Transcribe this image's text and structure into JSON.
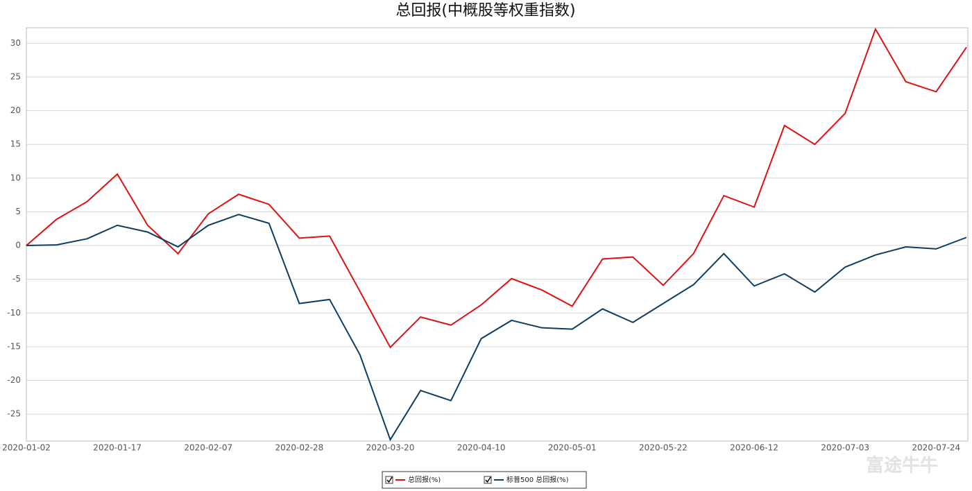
{
  "chart_data": {
    "type": "line",
    "title": "总回报(中概股等权重指数)",
    "categories": [
      "2020-01-02",
      null,
      null,
      "2020-01-17",
      null,
      null,
      "2020-02-07",
      null,
      null,
      "2020-02-28",
      null,
      null,
      "2020-03-20",
      null,
      null,
      "2020-04-10",
      null,
      null,
      "2020-05-01",
      null,
      null,
      "2020-05-22",
      null,
      null,
      "2020-06-12",
      null,
      null,
      "2020-07-03",
      null,
      null,
      "2020-07-24",
      null
    ],
    "series": [
      {
        "name": "总回报(%)",
        "color": "#e01010",
        "values": [
          0,
          3.9,
          6.5,
          10.6,
          3.0,
          -1.2,
          4.7,
          7.6,
          6.1,
          1.1,
          1.4,
          -6.8,
          -15.1,
          -10.6,
          -11.8,
          -8.8,
          -4.9,
          -6.6,
          -9.0,
          -2.0,
          -1.7,
          -5.9,
          -1.2,
          7.4,
          5.7,
          17.8,
          15.0,
          19.6,
          32.1,
          24.3,
          22.8,
          29.4
        ]
      },
      {
        "name": "标普500 总回报(%)",
        "color": "#0c3c60",
        "values": [
          0,
          0.1,
          1.0,
          3.0,
          2.0,
          -0.2,
          3.0,
          4.6,
          3.3,
          -8.6,
          -8.0,
          -16.2,
          -28.8,
          -21.5,
          -23.0,
          -13.8,
          -11.1,
          -12.2,
          -12.4,
          -9.4,
          -11.4,
          -8.6,
          -5.8,
          -1.2,
          -6.0,
          -4.2,
          -6.9,
          -3.2,
          -1.4,
          -0.2,
          -0.5,
          1.2
        ]
      }
    ],
    "ylim": [
      -29,
      32.3
    ],
    "yticks": [
      -25,
      -20,
      -15,
      -10,
      -5,
      0,
      5,
      10,
      15,
      20,
      25,
      30
    ],
    "grid": true,
    "watermark": "富途牛牛"
  }
}
